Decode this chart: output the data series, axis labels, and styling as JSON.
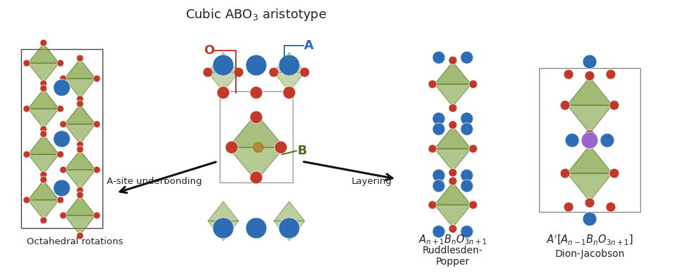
{
  "bg_color": "#ffffff",
  "color_O": "#c0392b",
  "color_A": "#2e6db4",
  "color_B": "#b5883a",
  "color_oct": "#7a9e3b",
  "color_oct_edge": "#4a6e1a",
  "color_arrow": "#111111",
  "color_Aprime": "#9966cc",
  "title": "Cubic ABO$_3$ aristotype",
  "title_fontsize": 13,
  "label_O_color": "#c0392b",
  "label_A_color": "#2e6db4",
  "label_B_color": "#4a6e1a",
  "label_octahedral": "Octahedral rotations",
  "label_asite": "A-site underbonding",
  "label_layering": "Layering",
  "label_rp_line1": "$A_{n+1}B_nO_{3n+1}$",
  "label_rp_line2": "Ruddlesden-\nPopper",
  "label_dj_line1": "$A'[A_{n-1}B_nO_{3n+1}]$",
  "label_dj_line2": "Dion-Jacobson"
}
